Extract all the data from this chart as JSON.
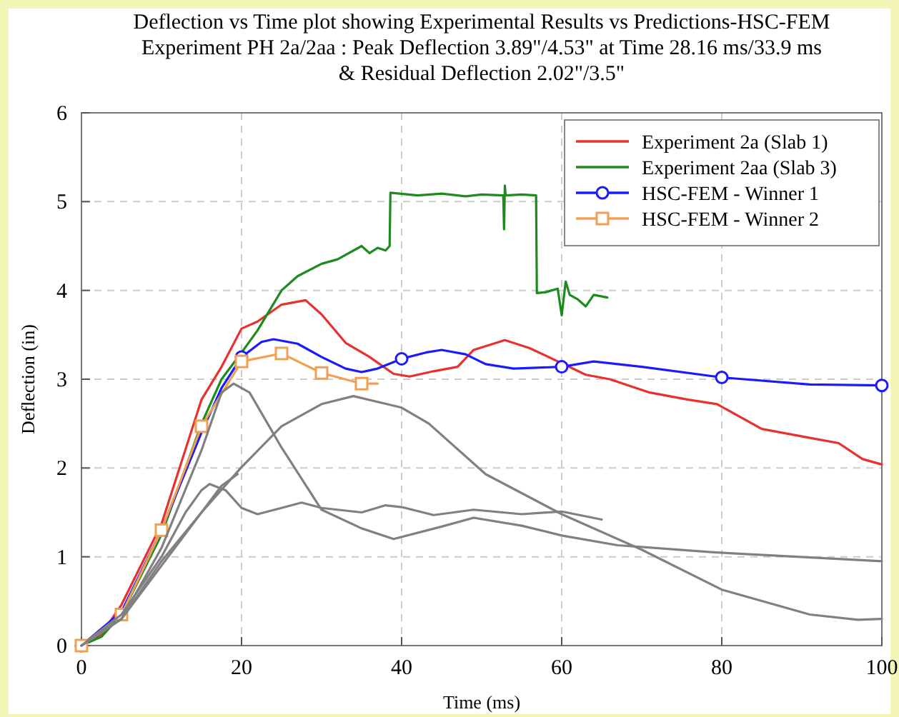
{
  "chart_data": {
    "type": "line",
    "title": "Deflection vs Time plot showing Experimental Results vs Predictions-HSC-FEM",
    "subtitle": "Experiment PH 2a/2aa : Peak Deflection 3.89\"/4.53\" at Time 28.16 ms/33.9 ms\n& Residual Deflection 2.02\"/3.5\"",
    "xlabel": "Time (ms)",
    "ylabel": "Deflection (in)",
    "xlim": [
      0,
      100
    ],
    "ylim": [
      0,
      6
    ],
    "xticks": [
      0,
      20,
      40,
      60,
      80,
      100
    ],
    "yticks": [
      0,
      1,
      2,
      3,
      4,
      5,
      6
    ],
    "grid": true,
    "legend": "top right",
    "line_style": "solid",
    "series": [
      {
        "name": "Experiment 2a (Slab 1)",
        "color": "#e8302f",
        "x": [
          0,
          2.5,
          5,
          10,
          15,
          17.5,
          20,
          22,
          25,
          28,
          30,
          33,
          36,
          39,
          41,
          44,
          47,
          49,
          52.9,
          56,
          60,
          63,
          66,
          71,
          75.8,
          79.4,
          85,
          91,
          94.6,
          97.6,
          100
        ],
        "values": [
          0,
          0.13,
          0.46,
          1.37,
          2.77,
          3.14,
          3.57,
          3.65,
          3.84,
          3.89,
          3.73,
          3.41,
          3.25,
          3.06,
          3.03,
          3.09,
          3.14,
          3.33,
          3.44,
          3.35,
          3.18,
          3.05,
          3,
          2.85,
          2.77,
          2.72,
          2.44,
          2.34,
          2.28,
          2.1,
          2.04
        ]
      },
      {
        "name": "Experiment 2aa (Slab 3)",
        "color": "#1f8a1f",
        "x": [
          0,
          2.5,
          5,
          10,
          15,
          17.5,
          20,
          22,
          25,
          27,
          30,
          32,
          35,
          36,
          37,
          38,
          38.5,
          38.6,
          42,
          45,
          48,
          50,
          52.7,
          52.8,
          52.9,
          53,
          55,
          56.8,
          56.9,
          58,
          59.5,
          60,
          60.5,
          61,
          62,
          63,
          64,
          65.7
        ],
        "values": [
          0,
          0.1,
          0.35,
          1.25,
          2.5,
          3,
          3.3,
          3.55,
          4,
          4.16,
          4.3,
          4.35,
          4.5,
          4.42,
          4.48,
          4.45,
          4.5,
          5.1,
          5.07,
          5.09,
          5.06,
          5.08,
          5.07,
          4.69,
          5.18,
          5.07,
          5.08,
          5.07,
          3.97,
          3.98,
          4.02,
          3.72,
          4.1,
          3.95,
          3.9,
          3.82,
          3.95,
          3.92
        ]
      },
      {
        "name": "HSC-FEM - Winner 1",
        "color": "#1a1aff",
        "x": [
          0,
          5,
          10,
          15,
          17.5,
          20,
          22.5,
          24,
          27,
          30,
          33,
          35,
          37,
          40,
          43,
          45,
          48,
          50.5,
          54,
          60,
          64,
          70,
          80,
          91,
          100
        ],
        "values": [
          0,
          0.38,
          1.3,
          2.4,
          2.9,
          3.25,
          3.42,
          3.45,
          3.4,
          3.25,
          3.12,
          3.08,
          3.12,
          3.23,
          3.3,
          3.33,
          3.28,
          3.17,
          3.12,
          3.14,
          3.2,
          3.14,
          3.02,
          2.94,
          2.93
        ]
      },
      {
        "name": "HSC-FEM - Winner 2",
        "color": "#f0a050",
        "x": [
          0,
          5,
          10,
          15,
          20,
          25,
          30,
          35,
          37
        ],
        "values": [
          0,
          0.35,
          1.3,
          2.47,
          3.2,
          3.29,
          3.07,
          2.95,
          2.95
        ]
      },
      {
        "type": "scatter",
        "color": "#1a1aff",
        "marker": "circle",
        "x": [
          0,
          20,
          40,
          60,
          80,
          100
        ],
        "values": [
          0,
          3.25,
          3.23,
          3.14,
          3.02,
          2.93
        ]
      },
      {
        "type": "scatter",
        "color": "#f0a050",
        "marker": "square",
        "x": [
          0,
          5,
          10,
          15,
          20,
          25,
          30,
          35
        ],
        "values": [
          0,
          0.35,
          1.3,
          2.47,
          3.2,
          3.29,
          3.07,
          2.95
        ]
      },
      {
        "color": "#808080",
        "x": [
          0,
          5,
          10,
          15,
          17.5,
          19,
          21,
          25,
          30,
          35,
          39,
          45,
          49,
          55,
          60,
          67,
          79,
          100
        ],
        "values": [
          0,
          0.3,
          1.1,
          2.2,
          2.85,
          2.95,
          2.85,
          2.23,
          1.53,
          1.32,
          1.2,
          1.34,
          1.44,
          1.35,
          1.24,
          1.13,
          1.05,
          0.95
        ]
      },
      {
        "color": "#808080",
        "x": [
          0,
          5,
          10,
          15,
          20,
          25,
          30,
          34,
          40,
          43.4,
          50.5,
          60,
          70,
          80,
          91,
          97,
          100
        ],
        "values": [
          0,
          0.3,
          0.95,
          1.5,
          2.01,
          2.47,
          2.72,
          2.81,
          2.68,
          2.5,
          1.93,
          1.48,
          1.08,
          0.63,
          0.35,
          0.29,
          0.3
        ]
      },
      {
        "color": "#808080",
        "x": [
          0,
          5,
          10,
          13,
          15,
          16,
          18,
          20,
          22,
          25,
          27.5,
          30,
          35,
          38,
          40,
          44,
          49,
          55,
          60,
          65
        ],
        "values": [
          0,
          0.35,
          1,
          1.5,
          1.75,
          1.82,
          1.75,
          1.55,
          1.48,
          1.55,
          1.61,
          1.55,
          1.5,
          1.58,
          1.56,
          1.47,
          1.53,
          1.48,
          1.51,
          1.42
        ]
      },
      {
        "color": "#808080",
        "x": [
          0,
          5,
          10,
          15,
          17.5,
          19.5
        ],
        "values": [
          0,
          0.3,
          0.9,
          1.5,
          1.8,
          1.93
        ]
      }
    ]
  }
}
